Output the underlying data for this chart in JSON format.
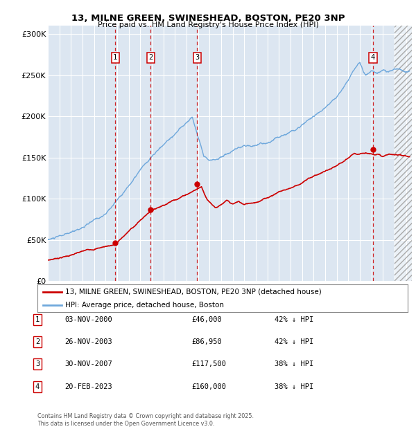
{
  "title": "13, MILNE GREEN, SWINESHEAD, BOSTON, PE20 3NP",
  "subtitle": "Price paid vs. HM Land Registry's House Price Index (HPI)",
  "ylabel_ticks": [
    "£0",
    "£50K",
    "£100K",
    "£150K",
    "£200K",
    "£250K",
    "£300K"
  ],
  "ytick_values": [
    0,
    50000,
    100000,
    150000,
    200000,
    250000,
    300000
  ],
  "ylim": [
    0,
    310000
  ],
  "xlim_start": 1995.0,
  "xlim_end": 2026.5,
  "sale_dates": [
    2000.84,
    2003.9,
    2007.92,
    2023.13
  ],
  "sale_prices": [
    46000,
    86950,
    117500,
    160000
  ],
  "sale_labels": [
    "1",
    "2",
    "3",
    "4"
  ],
  "sale_info": [
    {
      "num": "1",
      "date": "03-NOV-2000",
      "price": "£46,000",
      "pct": "42% ↓ HPI"
    },
    {
      "num": "2",
      "date": "26-NOV-2003",
      "price": "£86,950",
      "pct": "42% ↓ HPI"
    },
    {
      "num": "3",
      "date": "30-NOV-2007",
      "price": "£117,500",
      "pct": "38% ↓ HPI"
    },
    {
      "num": "4",
      "date": "20-FEB-2023",
      "price": "£160,000",
      "pct": "38% ↓ HPI"
    }
  ],
  "legend_line1": "13, MILNE GREEN, SWINESHEAD, BOSTON, PE20 3NP (detached house)",
  "legend_line2": "HPI: Average price, detached house, Boston",
  "footer": "Contains HM Land Registry data © Crown copyright and database right 2025.\nThis data is licensed under the Open Government Licence v3.0.",
  "hpi_color": "#6fa8dc",
  "sale_color": "#cc0000",
  "bg_color": "#dce6f1",
  "grid_color": "#ffffff"
}
